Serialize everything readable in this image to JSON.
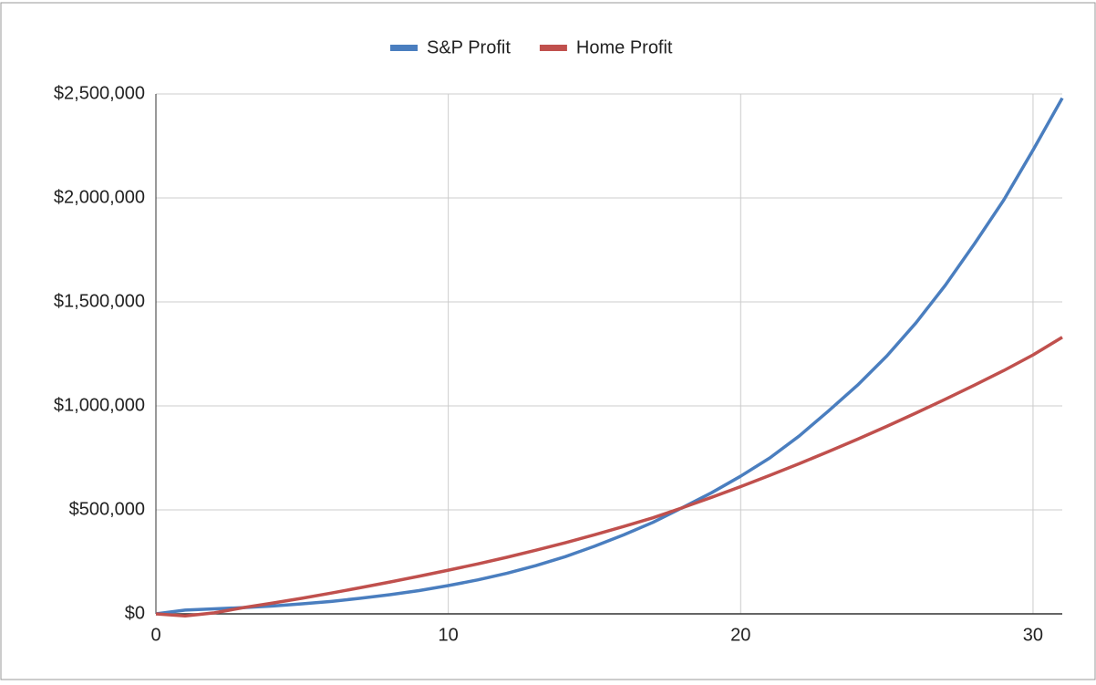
{
  "chart_data": {
    "type": "line",
    "x": [
      0,
      1,
      2,
      3,
      4,
      5,
      6,
      7,
      8,
      9,
      10,
      11,
      12,
      13,
      14,
      15,
      16,
      17,
      18,
      19,
      20,
      21,
      22,
      23,
      24,
      25,
      26,
      27,
      28,
      29,
      30,
      31
    ],
    "series": [
      {
        "name": "S&P Profit",
        "color": "#4a7ebf",
        "values": [
          0,
          18000,
          24000,
          30000,
          38000,
          48000,
          60000,
          75000,
          92000,
          112000,
          136000,
          163000,
          195000,
          232000,
          275000,
          325000,
          380000,
          440000,
          510000,
          582000,
          662000,
          750000,
          855000,
          975000,
          1100000,
          1240000,
          1400000,
          1580000,
          1780000,
          1990000,
          2230000,
          2480000
        ]
      },
      {
        "name": "Home Profit",
        "color": "#c0504d",
        "values": [
          0,
          -10000,
          5000,
          30000,
          52000,
          75000,
          100000,
          126000,
          153000,
          181000,
          210000,
          240000,
          272000,
          306000,
          342000,
          380000,
          420000,
          462000,
          510000,
          560000,
          612000,
          666000,
          722000,
          780000,
          840000,
          902000,
          966000,
          1032000,
          1100000,
          1170000,
          1245000,
          1330000
        ]
      }
    ],
    "xlim": [
      0,
      31
    ],
    "xticks": [
      0,
      10,
      20,
      30
    ],
    "ylim": [
      0,
      2500000
    ],
    "yticks": [
      {
        "value": 0,
        "label": "$0"
      },
      {
        "value": 500000,
        "label": "$500,000"
      },
      {
        "value": 1000000,
        "label": "$1,000,000"
      },
      {
        "value": 1500000,
        "label": "$1,500,000"
      },
      {
        "value": 2000000,
        "label": "$2,000,000"
      },
      {
        "value": 2500000,
        "label": "$2,500,000"
      }
    ],
    "grid": true,
    "legend": "top"
  }
}
